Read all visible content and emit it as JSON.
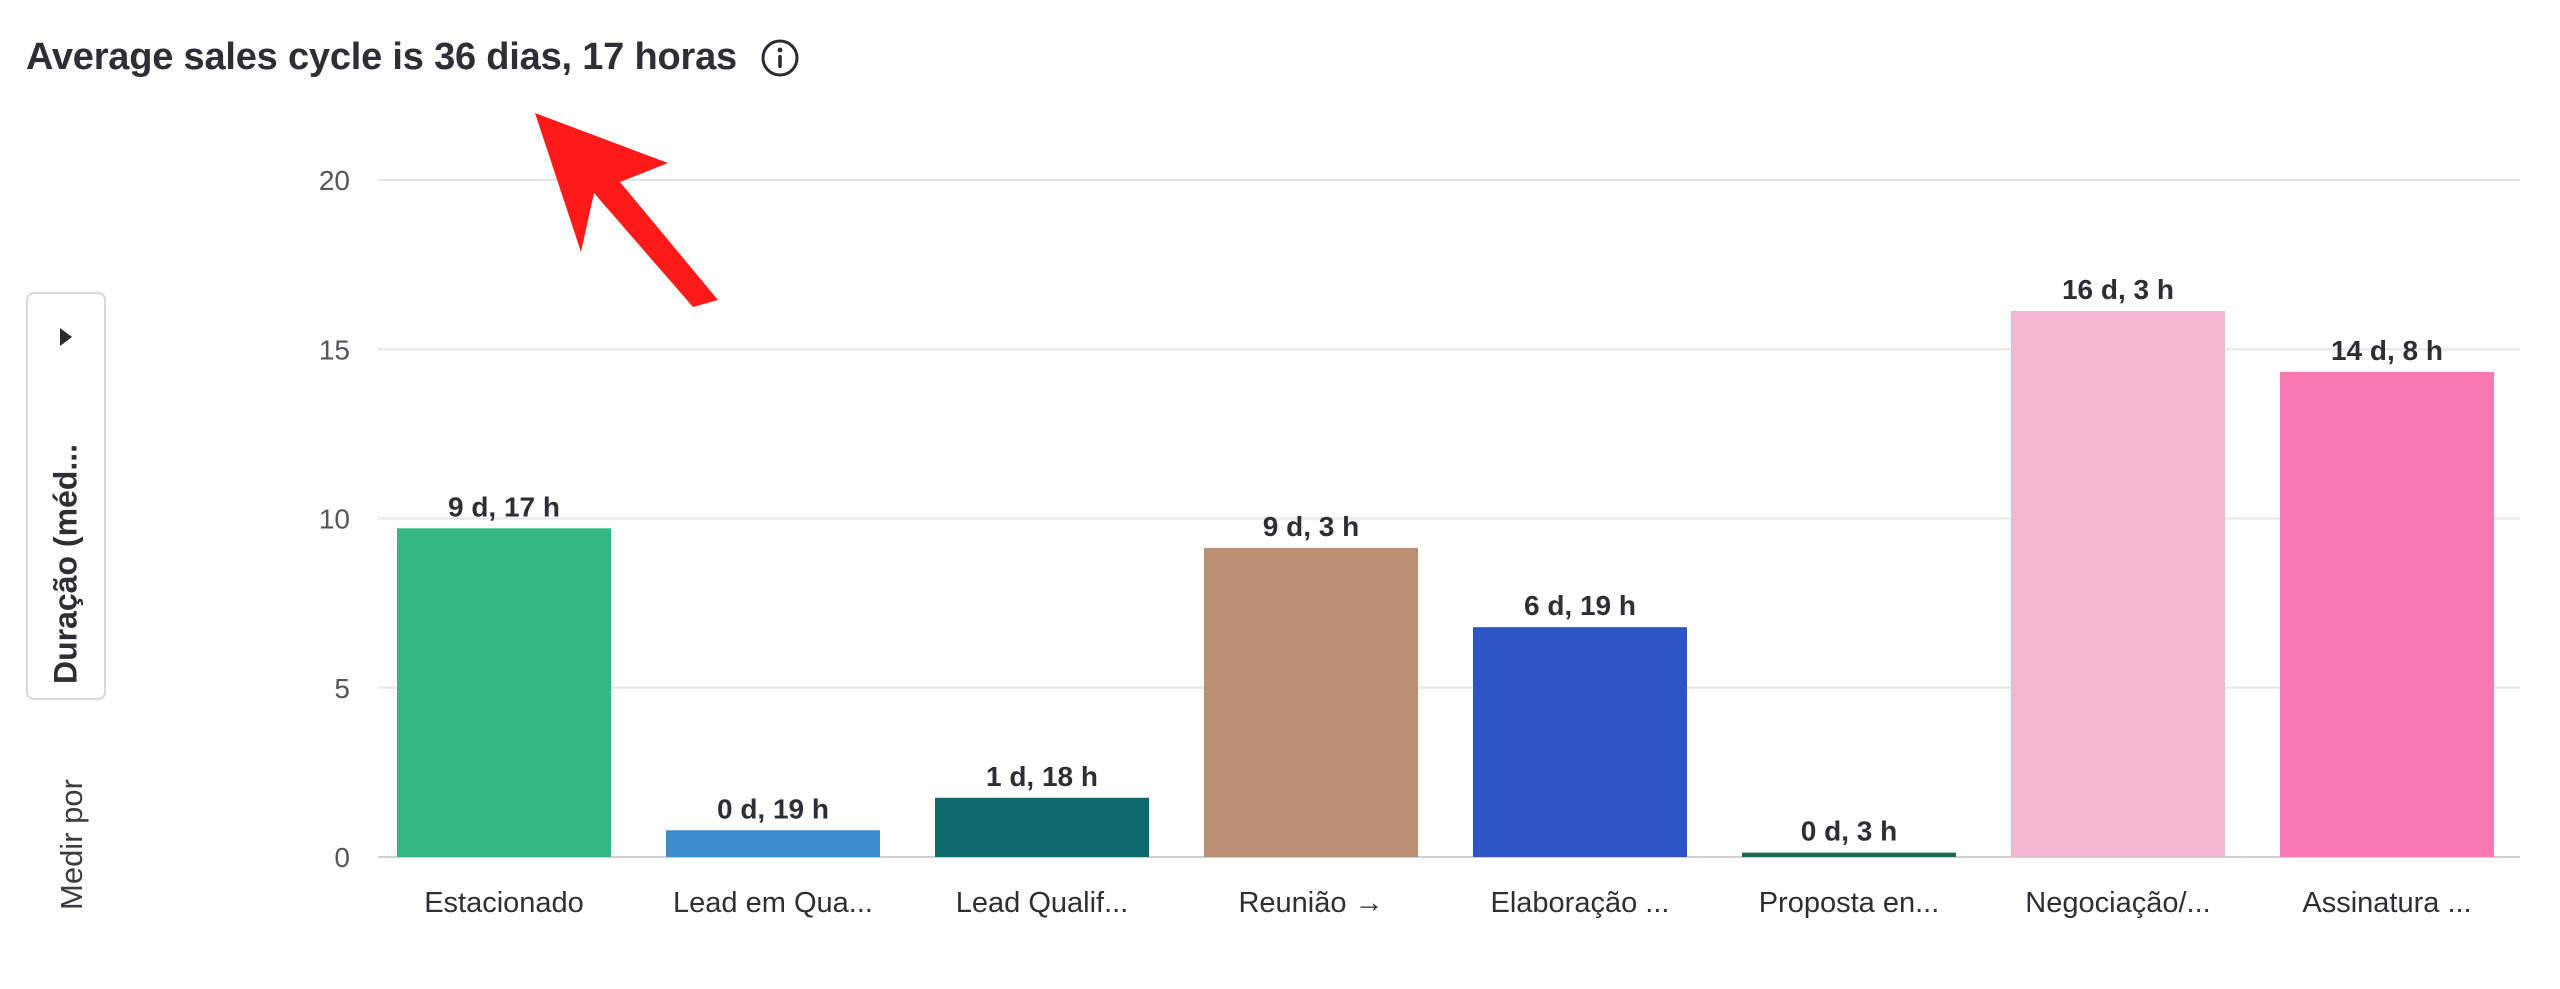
{
  "header": {
    "title": "Average sales cycle is 36 dias, 17 horas",
    "info_icon": "info-icon"
  },
  "measure": {
    "label": "Medir por",
    "selected": "Duração (méd...",
    "caret_icon": "caret-right-icon"
  },
  "annotation": {
    "arrow_color": "#ff1a1a",
    "arrow_icon": "arrow-pointer-icon"
  },
  "chart_data": {
    "type": "bar",
    "ylim": [
      0,
      20
    ],
    "yticks": [
      0,
      5,
      10,
      15,
      20
    ],
    "grid": true,
    "categories": [
      "Estacionado",
      "Lead em Qua...",
      "Lead Qualif...",
      "Reunião →",
      "Elaboração ...",
      "Proposta en...",
      "Negociação/...",
      "Assinatura ..."
    ],
    "values": [
      9.71,
      0.79,
      1.75,
      9.13,
      6.79,
      0.13,
      16.13,
      14.33
    ],
    "data_labels": [
      "9 d, 17 h",
      "0 d, 19 h",
      "1 d, 18 h",
      "9 d, 3 h",
      "6 d, 19 h",
      "0 d, 3 h",
      "16 d, 3 h",
      "14 d, 8 h"
    ],
    "colors": [
      "#33b884",
      "#3a8ecf",
      "#0e6b6b",
      "#ba8f73",
      "#2e55c6",
      "#1e6b50",
      "#f3b7d1",
      "#f77ab2"
    ]
  }
}
